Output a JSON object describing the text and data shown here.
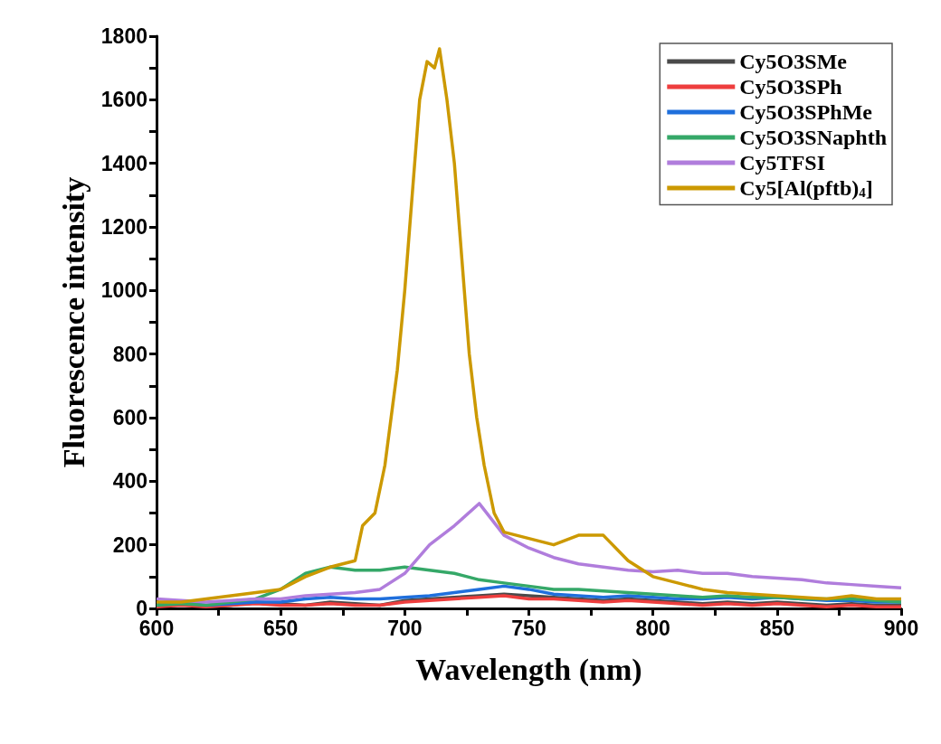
{
  "chart_data": {
    "type": "line",
    "xlabel": "Wavelength (nm)",
    "ylabel": "Fluorescence intensity",
    "x": [
      600,
      610,
      620,
      630,
      640,
      650,
      660,
      670,
      680,
      690,
      700,
      710,
      720,
      730,
      740,
      750,
      760,
      770,
      780,
      790,
      800,
      810,
      820,
      830,
      840,
      850,
      860,
      870,
      880,
      890,
      900
    ],
    "xlim": [
      600,
      900
    ],
    "xticks": [
      600,
      {
        "value": 625,
        "label": null
      },
      650,
      {
        "value": 675,
        "label": null
      },
      700,
      {
        "value": 725,
        "label": null
      },
      750,
      {
        "value": 775,
        "label": null
      },
      800,
      {
        "value": 825,
        "label": null
      },
      850,
      {
        "value": 875,
        "label": null
      },
      900
    ],
    "ylim": [
      0,
      1800
    ],
    "yticks": [
      0,
      {
        "value": 100,
        "label": null
      },
      200,
      {
        "value": 300,
        "label": null
      },
      400,
      {
        "value": 500,
        "label": null
      },
      600,
      {
        "value": 700,
        "label": null
      },
      800,
      {
        "value": 900,
        "label": null
      },
      1000,
      {
        "value": 1100,
        "label": null
      },
      1200,
      {
        "value": 1300,
        "label": null
      },
      1400,
      {
        "value": 1500,
        "label": null
      },
      1600,
      {
        "value": 1700,
        "label": null
      },
      1800
    ],
    "grid": false,
    "legend": "top right",
    "line_style": "solid",
    "marker": "none",
    "series": [
      {
        "name": "Cy5O3SMe",
        "color": "#4a4a4a",
        "values": [
          10,
          15,
          5,
          10,
          20,
          15,
          10,
          20,
          15,
          10,
          25,
          30,
          35,
          40,
          45,
          40,
          35,
          30,
          25,
          30,
          25,
          20,
          15,
          20,
          15,
          20,
          15,
          10,
          15,
          10,
          10
        ]
      },
      {
        "name": "Cy5O3SPh",
        "color": "#ee3e3e",
        "values": [
          5,
          10,
          5,
          10,
          15,
          10,
          10,
          15,
          10,
          10,
          20,
          25,
          30,
          35,
          40,
          30,
          30,
          25,
          20,
          25,
          20,
          15,
          10,
          15,
          10,
          15,
          10,
          5,
          10,
          5,
          5
        ]
      },
      {
        "name": "Cy5O3SPhMe",
        "color": "#1f6fdc",
        "values": [
          15,
          20,
          10,
          15,
          20,
          20,
          30,
          35,
          30,
          30,
          35,
          40,
          50,
          60,
          70,
          60,
          45,
          40,
          35,
          40,
          35,
          30,
          30,
          35,
          30,
          35,
          30,
          25,
          25,
          20,
          20
        ]
      },
      {
        "name": "Cy5O3SNaphth",
        "color": "#35a868",
        "values": [
          10,
          15,
          10,
          20,
          30,
          60,
          110,
          130,
          120,
          120,
          130,
          120,
          110,
          90,
          80,
          70,
          60,
          60,
          55,
          50,
          45,
          40,
          35,
          40,
          35,
          35,
          30,
          30,
          30,
          25,
          20
        ]
      },
      {
        "name": "Cy5TFSI",
        "color": "#b07ddc",
        "values": [
          30,
          25,
          20,
          25,
          30,
          30,
          40,
          45,
          50,
          60,
          110,
          200,
          260,
          330,
          230,
          190,
          160,
          140,
          130,
          120,
          115,
          120,
          110,
          110,
          100,
          95,
          90,
          80,
          75,
          70,
          65
        ]
      },
      {
        "name": "Cy5[Al(pftb)$_{4}$]",
        "color": "#cc9900",
        "x": [
          600,
          610,
          620,
          630,
          640,
          650,
          660,
          670,
          680,
          683,
          688,
          692,
          697,
          700,
          703,
          706,
          709,
          712,
          714,
          717,
          720,
          723,
          726,
          729,
          732,
          736,
          740,
          745,
          750,
          760,
          770,
          780,
          790,
          800,
          810,
          820,
          830,
          840,
          850,
          860,
          870,
          880,
          890,
          900
        ],
        "values": [
          20,
          20,
          30,
          40,
          50,
          60,
          100,
          130,
          150,
          260,
          300,
          450,
          750,
          1000,
          1300,
          1600,
          1720,
          1700,
          1760,
          1600,
          1400,
          1100,
          800,
          600,
          450,
          300,
          240,
          230,
          220,
          200,
          230,
          230,
          150,
          100,
          80,
          60,
          50,
          45,
          40,
          35,
          30,
          40,
          30,
          30
        ]
      }
    ]
  }
}
